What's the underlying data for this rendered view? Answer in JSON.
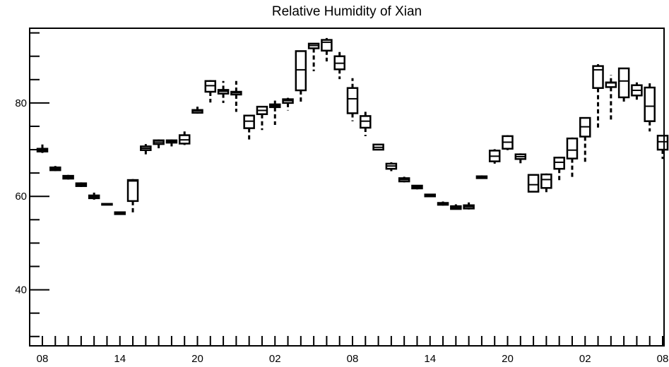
{
  "chart_data": {
    "type": "box",
    "title": "Relative Humidity of Xian",
    "xlabel": "",
    "ylabel": "",
    "ylim": [
      28,
      96
    ],
    "yticks": [
      40,
      60,
      80
    ],
    "xticks": [
      "08",
      "14",
      "20",
      "02",
      "08",
      "14",
      "20",
      "02",
      "08"
    ],
    "grid": false,
    "legend": "none",
    "boxes": [
      {
        "t": 0,
        "low": 69.3,
        "q1": 69.6,
        "median": 69.9,
        "q3": 70.2,
        "high": 71.2
      },
      {
        "t": 1,
        "low": 65.4,
        "q1": 65.6,
        "median": 65.9,
        "q3": 66.2,
        "high": 66.5
      },
      {
        "t": 2,
        "low": 63.6,
        "q1": 63.8,
        "median": 64.1,
        "q3": 64.4,
        "high": 64.6
      },
      {
        "t": 3,
        "low": 62.0,
        "q1": 62.2,
        "median": 62.5,
        "q3": 62.8,
        "high": 63.0
      },
      {
        "t": 4,
        "low": 59.3,
        "q1": 59.6,
        "median": 59.9,
        "q3": 60.2,
        "high": 60.8
      },
      {
        "t": 5,
        "low": 58.2,
        "q1": 58.2,
        "median": 58.3,
        "q3": 58.4,
        "high": 58.4
      },
      {
        "t": 6,
        "low": 56.1,
        "q1": 56.2,
        "median": 56.4,
        "q3": 56.6,
        "high": 56.7
      },
      {
        "t": 7,
        "low": 56.5,
        "q1": 59.0,
        "median": 63.3,
        "q3": 63.5,
        "high": 63.7
      },
      {
        "t": 8,
        "low": 69.0,
        "q1": 69.9,
        "median": 70.3,
        "q3": 70.7,
        "high": 71.2
      },
      {
        "t": 9,
        "low": 70.3,
        "q1": 71.2,
        "median": 71.6,
        "q3": 72.0,
        "high": 72.2
      },
      {
        "t": 10,
        "low": 70.7,
        "q1": 71.5,
        "median": 71.8,
        "q3": 72.0,
        "high": 72.2
      },
      {
        "t": 11,
        "low": 71.0,
        "q1": 71.3,
        "median": 72.1,
        "q3": 73.1,
        "high": 73.9
      },
      {
        "t": 12,
        "low": 77.7,
        "q1": 77.9,
        "median": 78.3,
        "q3": 78.5,
        "high": 79.2
      },
      {
        "t": 13,
        "low": 80.1,
        "q1": 82.4,
        "median": 83.7,
        "q3": 84.7,
        "high": 84.9
      },
      {
        "t": 14,
        "low": 80.0,
        "q1": 82.0,
        "median": 82.5,
        "q3": 82.8,
        "high": 84.7
      },
      {
        "t": 15,
        "low": 78.1,
        "q1": 81.8,
        "median": 82.2,
        "q3": 82.4,
        "high": 84.7
      },
      {
        "t": 16,
        "low": 72.1,
        "q1": 74.6,
        "median": 76.1,
        "q3": 77.3,
        "high": 77.3
      },
      {
        "t": 17,
        "low": 74.2,
        "q1": 77.6,
        "median": 78.4,
        "q3": 79.2,
        "high": 79.2
      },
      {
        "t": 18,
        "low": 75.3,
        "q1": 79.1,
        "median": 79.4,
        "q3": 79.7,
        "high": 80.5
      },
      {
        "t": 19,
        "low": 78.4,
        "q1": 80.0,
        "median": 80.5,
        "q3": 80.8,
        "high": 81.1
      },
      {
        "t": 20,
        "low": 79.8,
        "q1": 82.7,
        "median": 87.1,
        "q3": 91.1,
        "high": 91.1
      },
      {
        "t": 21,
        "low": 86.8,
        "q1": 91.7,
        "median": 92.3,
        "q3": 92.7,
        "high": 92.7
      },
      {
        "t": 22,
        "low": 88.9,
        "q1": 91.2,
        "median": 93.0,
        "q3": 93.5,
        "high": 93.9
      },
      {
        "t": 23,
        "low": 85.1,
        "q1": 87.2,
        "median": 88.5,
        "q3": 90.0,
        "high": 91.5
      },
      {
        "t": 24,
        "low": 76.1,
        "q1": 77.8,
        "median": 80.9,
        "q3": 83.2,
        "high": 85.3
      },
      {
        "t": 25,
        "low": 72.9,
        "q1": 74.7,
        "median": 76.1,
        "q3": 77.2,
        "high": 78.4
      },
      {
        "t": 26,
        "low": 69.9,
        "q1": 70.0,
        "median": 70.5,
        "q3": 71.1,
        "high": 71.1
      },
      {
        "t": 27,
        "low": 65.4,
        "q1": 65.9,
        "median": 66.5,
        "q3": 67.0,
        "high": 67.3
      },
      {
        "t": 28,
        "low": 63.0,
        "q1": 63.2,
        "median": 63.6,
        "q3": 63.9,
        "high": 64.2
      },
      {
        "t": 29,
        "low": 61.5,
        "q1": 61.7,
        "median": 62.0,
        "q3": 62.3,
        "high": 62.4
      },
      {
        "t": 30,
        "low": 59.9,
        "q1": 60.0,
        "median": 60.2,
        "q3": 60.4,
        "high": 60.4
      },
      {
        "t": 31,
        "low": 58.0,
        "q1": 58.2,
        "median": 58.4,
        "q3": 58.6,
        "high": 58.9
      },
      {
        "t": 32,
        "low": 57.2,
        "q1": 57.3,
        "median": 57.6,
        "q3": 57.9,
        "high": 58.3
      },
      {
        "t": 33,
        "low": 57.2,
        "q1": 57.4,
        "median": 57.8,
        "q3": 58.1,
        "high": 58.7
      },
      {
        "t": 34,
        "low": 63.8,
        "q1": 63.9,
        "median": 64.1,
        "q3": 64.3,
        "high": 64.5
      },
      {
        "t": 35,
        "low": 67.0,
        "q1": 67.5,
        "median": 68.6,
        "q3": 69.8,
        "high": 70.1
      },
      {
        "t": 36,
        "low": 69.9,
        "q1": 70.2,
        "median": 71.6,
        "q3": 72.9,
        "high": 73.1
      },
      {
        "t": 37,
        "low": 67.0,
        "q1": 68.0,
        "median": 68.5,
        "q3": 69.0,
        "high": 69.2
      },
      {
        "t": 38,
        "low": 60.9,
        "q1": 61.0,
        "median": 62.5,
        "q3": 64.6,
        "high": 64.6
      },
      {
        "t": 39,
        "low": 60.9,
        "q1": 61.8,
        "median": 63.6,
        "q3": 64.7,
        "high": 64.9
      },
      {
        "t": 40,
        "low": 63.0,
        "q1": 65.9,
        "median": 67.3,
        "q3": 68.3,
        "high": 68.5
      },
      {
        "t": 41,
        "low": 63.7,
        "q1": 68.1,
        "median": 69.9,
        "q3": 72.4,
        "high": 72.6
      },
      {
        "t": 42,
        "low": 67.4,
        "q1": 72.8,
        "median": 74.9,
        "q3": 76.8,
        "high": 76.8
      },
      {
        "t": 43,
        "low": 74.2,
        "q1": 83.2,
        "median": 87.1,
        "q3": 87.9,
        "high": 88.3
      },
      {
        "t": 44,
        "low": 76.0,
        "q1": 83.4,
        "median": 84.3,
        "q3": 84.4,
        "high": 86.0
      },
      {
        "t": 45,
        "low": 80.1,
        "q1": 81.2,
        "median": 84.7,
        "q3": 87.4,
        "high": 87.4
      },
      {
        "t": 46,
        "low": 80.7,
        "q1": 81.6,
        "median": 82.7,
        "q3": 83.8,
        "high": 84.4
      },
      {
        "t": 47,
        "low": 73.9,
        "q1": 76.1,
        "median": 79.3,
        "q3": 83.3,
        "high": 84.5
      },
      {
        "t": 48,
        "low": 68.0,
        "q1": 70.0,
        "median": 71.7,
        "q3": 73.0,
        "high": 73.0
      }
    ]
  }
}
